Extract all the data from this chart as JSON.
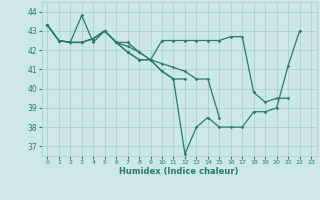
{
  "xlabel": "Humidex (Indice chaleur)",
  "xlim": [
    -0.5,
    23.5
  ],
  "ylim": [
    36.5,
    44.5
  ],
  "yticks": [
    37,
    38,
    39,
    40,
    41,
    42,
    43,
    44
  ],
  "xticks": [
    0,
    1,
    2,
    3,
    4,
    5,
    6,
    7,
    8,
    9,
    10,
    11,
    12,
    13,
    14,
    15,
    16,
    17,
    18,
    19,
    20,
    21,
    22,
    23
  ],
  "bg_color": "#cce8e8",
  "grid_color": "#aacccc",
  "line_color": "#2a7a70",
  "line1": [
    43.3,
    42.5,
    42.4,
    43.8,
    42.4,
    43.0,
    42.4,
    41.9,
    41.5,
    41.5,
    40.9,
    40.5,
    36.6,
    38.0,
    38.5,
    38.0,
    38.0,
    38.0,
    38.8,
    38.8,
    39.0,
    41.2,
    43.0
  ],
  "line2": [
    43.3,
    42.5,
    42.4,
    42.4,
    42.6,
    43.0,
    42.4,
    41.9,
    41.5,
    41.5,
    42.5,
    42.5,
    42.5,
    42.5,
    42.5,
    42.5,
    42.7,
    42.7,
    39.8,
    39.3,
    39.5,
    39.5
  ],
  "line3": [
    43.3,
    42.5,
    42.4,
    42.4,
    42.6,
    43.0,
    42.4,
    42.4,
    41.9,
    41.5,
    40.9,
    40.5,
    40.5
  ],
  "line4": [
    43.3,
    42.5,
    42.4,
    42.4,
    42.6,
    43.0,
    42.4,
    42.2,
    41.9,
    41.5,
    41.3,
    41.1,
    40.9,
    40.5,
    40.5,
    38.5
  ]
}
